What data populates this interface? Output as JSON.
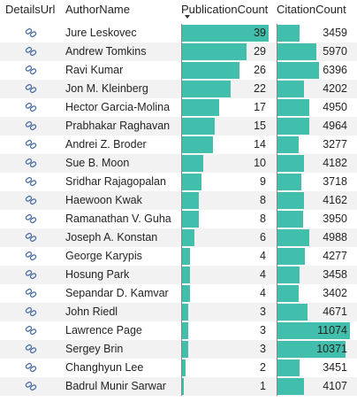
{
  "columns": {
    "details": "DetailsUrl",
    "author": "AuthorName",
    "pubs": "PublicationCount",
    "cites": "CitationCount"
  },
  "sort": {
    "column": "PublicationCount",
    "direction": "descending"
  },
  "bar_color": "#41bfac",
  "link_icon": "link-icon",
  "max_publications": 39,
  "max_citations": 11074,
  "rows": [
    {
      "name": "Jure Leskovec",
      "pubs": 39,
      "cites": 3459
    },
    {
      "name": "Andrew Tomkins",
      "pubs": 29,
      "cites": 5970
    },
    {
      "name": "Ravi Kumar",
      "pubs": 26,
      "cites": 6396
    },
    {
      "name": "Jon M. Kleinberg",
      "pubs": 22,
      "cites": 4202
    },
    {
      "name": "Hector Garcia-Molina",
      "pubs": 17,
      "cites": 4950
    },
    {
      "name": "Prabhakar Raghavan",
      "pubs": 15,
      "cites": 4964
    },
    {
      "name": "Andrei Z. Broder",
      "pubs": 14,
      "cites": 3277
    },
    {
      "name": "Sue B. Moon",
      "pubs": 10,
      "cites": 4182
    },
    {
      "name": "Sridhar Rajagopalan",
      "pubs": 9,
      "cites": 3718
    },
    {
      "name": "Haewoon Kwak",
      "pubs": 8,
      "cites": 4162
    },
    {
      "name": "Ramanathan V. Guha",
      "pubs": 8,
      "cites": 3950
    },
    {
      "name": "Joseph A. Konstan",
      "pubs": 6,
      "cites": 4988
    },
    {
      "name": "George Karypis",
      "pubs": 4,
      "cites": 4277
    },
    {
      "name": "Hosung Park",
      "pubs": 4,
      "cites": 3458
    },
    {
      "name": "Sepandar D. Kamvar",
      "pubs": 4,
      "cites": 3402
    },
    {
      "name": "John Riedl",
      "pubs": 3,
      "cites": 4671
    },
    {
      "name": "Lawrence Page",
      "pubs": 3,
      "cites": 11074
    },
    {
      "name": "Sergey Brin",
      "pubs": 3,
      "cites": 10371
    },
    {
      "name": "Changhyun Lee",
      "pubs": 2,
      "cites": 3451
    },
    {
      "name": "Badrul Munir Sarwar",
      "pubs": 1,
      "cites": 4107
    }
  ]
}
